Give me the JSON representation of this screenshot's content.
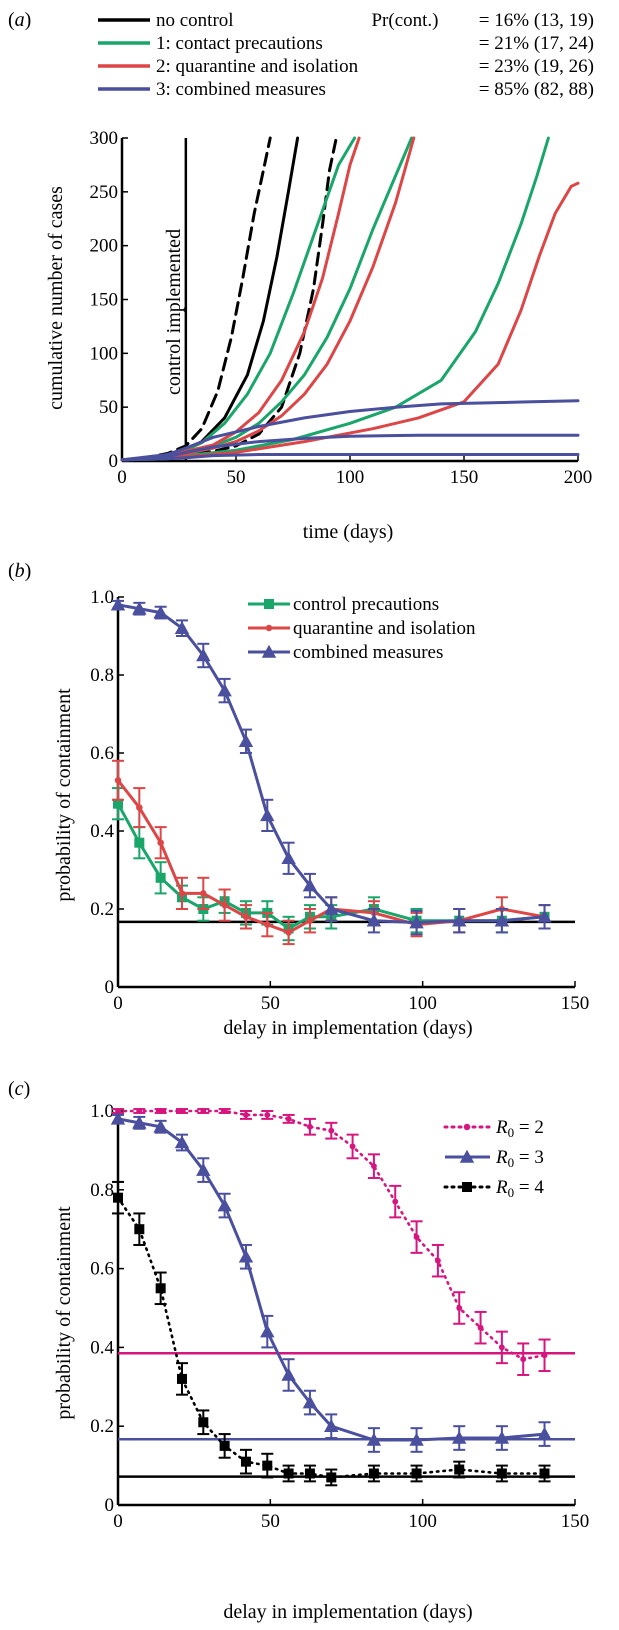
{
  "colors": {
    "black": "#000000",
    "green": "#1aa66a",
    "red": "#dd4646",
    "blue": "#4a4f9e",
    "magenta": "#d6157f"
  },
  "chart_data": [
    {
      "panel": "(a)",
      "type": "line",
      "xlabel": "time (days)",
      "ylabel": "cumulative number of cases",
      "xlim": [
        0,
        200
      ],
      "ylim": [
        0,
        300
      ],
      "xticks": [
        "0",
        "50",
        "100",
        "150",
        "200"
      ],
      "yticks": [
        "0",
        "50",
        "100",
        "150",
        "200",
        "250",
        "300"
      ],
      "annotation": "control implemented",
      "control_day": 28,
      "legend_header": "Pr(cont.)",
      "legend": [
        {
          "name": "no control",
          "pr": "= 16% (13, 19)"
        },
        {
          "name": "1: contact precautions",
          "pr": "= 21% (17, 24)"
        },
        {
          "name": "2: quarantine and isolation",
          "pr": "= 23% (19, 26)"
        },
        {
          "name": "3: combined measures",
          "pr": "= 85% (82, 88)"
        }
      ],
      "series": [
        {
          "legend": 0,
          "style": "solid",
          "points": [
            [
              0,
              1
            ],
            [
              10,
              2
            ],
            [
              20,
              5
            ],
            [
              28,
              10
            ],
            [
              35,
              18
            ],
            [
              45,
              40
            ],
            [
              55,
              80
            ],
            [
              62,
              130
            ],
            [
              68,
              190
            ],
            [
              73,
              250
            ],
            [
              77,
              300
            ]
          ]
        },
        {
          "legend": 0,
          "style": "dashed",
          "points": [
            [
              0,
              1
            ],
            [
              10,
              3
            ],
            [
              20,
              7
            ],
            [
              28,
              14
            ],
            [
              35,
              30
            ],
            [
              42,
              65
            ],
            [
              48,
              115
            ],
            [
              53,
              170
            ],
            [
              58,
              230
            ],
            [
              62,
              270
            ],
            [
              65,
              300
            ]
          ]
        },
        {
          "legend": 0,
          "style": "dashed",
          "points": [
            [
              0,
              1
            ],
            [
              20,
              3
            ],
            [
              28,
              6
            ],
            [
              40,
              9
            ],
            [
              50,
              14
            ],
            [
              60,
              25
            ],
            [
              70,
              50
            ],
            [
              78,
              100
            ],
            [
              84,
              160
            ],
            [
              88,
              220
            ],
            [
              91,
              270
            ],
            [
              94,
              300
            ]
          ]
        },
        {
          "legend": 1,
          "style": "solid",
          "points": [
            [
              0,
              1
            ],
            [
              20,
              4
            ],
            [
              28,
              10
            ],
            [
              35,
              17
            ],
            [
              45,
              35
            ],
            [
              55,
              62
            ],
            [
              65,
              100
            ],
            [
              75,
              155
            ],
            [
              85,
              215
            ],
            [
              95,
              275
            ],
            [
              102,
              300
            ]
          ]
        },
        {
          "legend": 1,
          "style": "solid",
          "points": [
            [
              0,
              1
            ],
            [
              20,
              3
            ],
            [
              28,
              8
            ],
            [
              40,
              14
            ],
            [
              50,
              22
            ],
            [
              60,
              35
            ],
            [
              70,
              55
            ],
            [
              80,
              80
            ],
            [
              90,
              115
            ],
            [
              100,
              160
            ],
            [
              110,
              215
            ],
            [
              120,
              265
            ],
            [
              127,
              300
            ]
          ]
        },
        {
          "legend": 1,
          "style": "solid",
          "points": [
            [
              0,
              1
            ],
            [
              20,
              2
            ],
            [
              28,
              5
            ],
            [
              50,
              10
            ],
            [
              75,
              20
            ],
            [
              100,
              35
            ],
            [
              120,
              50
            ],
            [
              140,
              75
            ],
            [
              155,
              120
            ],
            [
              165,
              165
            ],
            [
              175,
              220
            ],
            [
              182,
              265
            ],
            [
              187,
              300
            ]
          ]
        },
        {
          "legend": 2,
          "style": "solid",
          "points": [
            [
              0,
              1
            ],
            [
              20,
              4
            ],
            [
              28,
              9
            ],
            [
              40,
              15
            ],
            [
              50,
              27
            ],
            [
              60,
              45
            ],
            [
              70,
              75
            ],
            [
              80,
              120
            ],
            [
              88,
              170
            ],
            [
              95,
              230
            ],
            [
              100,
              275
            ],
            [
              104,
              300
            ]
          ]
        },
        {
          "legend": 2,
          "style": "solid",
          "points": [
            [
              0,
              1
            ],
            [
              20,
              3
            ],
            [
              28,
              7
            ],
            [
              40,
              12
            ],
            [
              50,
              18
            ],
            [
              60,
              28
            ],
            [
              70,
              42
            ],
            [
              80,
              62
            ],
            [
              90,
              90
            ],
            [
              100,
              130
            ],
            [
              110,
              180
            ],
            [
              120,
              240
            ],
            [
              128,
              300
            ]
          ]
        },
        {
          "legend": 2,
          "style": "solid",
          "points": [
            [
              0,
              1
            ],
            [
              28,
              4
            ],
            [
              50,
              8
            ],
            [
              80,
              18
            ],
            [
              110,
              30
            ],
            [
              130,
              40
            ],
            [
              150,
              55
            ],
            [
              165,
              90
            ],
            [
              175,
              140
            ],
            [
              183,
              190
            ],
            [
              190,
              230
            ],
            [
              197,
              255
            ],
            [
              200,
              258
            ]
          ]
        },
        {
          "legend": 3,
          "style": "solid",
          "points": [
            [
              0,
              1
            ],
            [
              20,
              6
            ],
            [
              28,
              12
            ],
            [
              40,
              22
            ],
            [
              60,
              32
            ],
            [
              80,
              40
            ],
            [
              100,
              46
            ],
            [
              120,
              50
            ],
            [
              140,
              53
            ],
            [
              160,
              54
            ],
            [
              180,
              55
            ],
            [
              200,
              56
            ]
          ]
        },
        {
          "legend": 3,
          "style": "solid",
          "points": [
            [
              0,
              1
            ],
            [
              20,
              4
            ],
            [
              28,
              8
            ],
            [
              40,
              13
            ],
            [
              60,
              18
            ],
            [
              80,
              21
            ],
            [
              100,
              23
            ],
            [
              130,
              24
            ],
            [
              160,
              24
            ],
            [
              200,
              24
            ]
          ]
        },
        {
          "legend": 3,
          "style": "solid",
          "points": [
            [
              0,
              1
            ],
            [
              20,
              2
            ],
            [
              28,
              3
            ],
            [
              40,
              5
            ],
            [
              60,
              6
            ],
            [
              80,
              6
            ],
            [
              120,
              6
            ],
            [
              200,
              6
            ]
          ]
        }
      ]
    },
    {
      "panel": "(b)",
      "type": "line",
      "xlabel": "delay in implementation (days)",
      "ylabel": "probability of containment",
      "xlim": [
        0,
        150
      ],
      "ylim": [
        0,
        1.0
      ],
      "xticks": [
        "0",
        "50",
        "100",
        "150"
      ],
      "yticks": [
        "0",
        "0.2",
        "0.4",
        "0.6",
        "0.8",
        "1.0"
      ],
      "hline": {
        "y": 0.167,
        "color": "black"
      },
      "legend": [
        {
          "name": "control precautions",
          "color": "green",
          "marker": "square"
        },
        {
          "name": "quarantine and isolation",
          "color": "red",
          "marker": "dot"
        },
        {
          "name": "combined measures",
          "color": "blue",
          "marker": "triangle"
        }
      ],
      "series": [
        {
          "legend": 0,
          "x": [
            0,
            7,
            14,
            21,
            28,
            35,
            42,
            49,
            56,
            63,
            70,
            84,
            98,
            112,
            126,
            140
          ],
          "y": [
            0.47,
            0.37,
            0.28,
            0.23,
            0.2,
            0.22,
            0.19,
            0.19,
            0.15,
            0.18,
            0.18,
            0.2,
            0.17,
            0.17,
            0.17,
            0.18
          ],
          "err": [
            0.04,
            0.04,
            0.04,
            0.03,
            0.03,
            0.03,
            0.03,
            0.03,
            0.03,
            0.03,
            0.03,
            0.03,
            0.03,
            0.03,
            0.03,
            0.03
          ]
        },
        {
          "legend": 1,
          "x": [
            0,
            7,
            14,
            21,
            28,
            35,
            42,
            49,
            56,
            63,
            70,
            84,
            98,
            112,
            126,
            140
          ],
          "y": [
            0.53,
            0.46,
            0.37,
            0.24,
            0.24,
            0.21,
            0.18,
            0.16,
            0.14,
            0.17,
            0.2,
            0.19,
            0.16,
            0.17,
            0.2,
            0.18
          ],
          "err": [
            0.05,
            0.05,
            0.04,
            0.04,
            0.04,
            0.04,
            0.03,
            0.03,
            0.03,
            0.03,
            0.03,
            0.03,
            0.03,
            0.03,
            0.03,
            0.03
          ]
        },
        {
          "legend": 2,
          "x": [
            0,
            7,
            14,
            21,
            28,
            35,
            42,
            49,
            56,
            63,
            70,
            84,
            98,
            112,
            126,
            140
          ],
          "y": [
            0.98,
            0.97,
            0.96,
            0.92,
            0.85,
            0.76,
            0.63,
            0.44,
            0.33,
            0.26,
            0.2,
            0.17,
            0.165,
            0.17,
            0.17,
            0.18
          ],
          "err": [
            0.01,
            0.015,
            0.015,
            0.02,
            0.03,
            0.03,
            0.03,
            0.04,
            0.04,
            0.03,
            0.03,
            0.03,
            0.03,
            0.03,
            0.03,
            0.03
          ]
        }
      ]
    },
    {
      "panel": "(c)",
      "type": "line",
      "xlabel": "delay in implementation (days)",
      "ylabel": "probability of containment",
      "xlim": [
        0,
        150
      ],
      "ylim": [
        0,
        1.0
      ],
      "xticks": [
        "0",
        "50",
        "100",
        "150"
      ],
      "yticks": [
        "0",
        "0.2",
        "0.4",
        "0.6",
        "0.8",
        "1.0"
      ],
      "hlines": [
        {
          "y": 0.385,
          "color": "magenta"
        },
        {
          "y": 0.167,
          "color": "blue"
        },
        {
          "y": 0.072,
          "color": "black"
        }
      ],
      "legend": [
        {
          "name": "R",
          "sub": "0",
          "value": " = 2",
          "color": "magenta",
          "marker": "dot",
          "style": "dotted"
        },
        {
          "name": "R",
          "sub": "0",
          "value": " = 3",
          "color": "blue",
          "marker": "triangle",
          "style": "solid"
        },
        {
          "name": "R",
          "sub": "0",
          "value": " = 4",
          "color": "black",
          "marker": "square",
          "style": "dotted"
        }
      ],
      "series": [
        {
          "legend": 0,
          "x": [
            0,
            7,
            14,
            21,
            28,
            35,
            42,
            49,
            56,
            63,
            70,
            77,
            84,
            91,
            98,
            105,
            112,
            119,
            126,
            133,
            140
          ],
          "y": [
            1.0,
            1.0,
            1.0,
            1.0,
            1.0,
            1.0,
            0.99,
            0.99,
            0.98,
            0.96,
            0.95,
            0.91,
            0.86,
            0.77,
            0.68,
            0.62,
            0.5,
            0.45,
            0.4,
            0.37,
            0.38
          ],
          "err": [
            0.005,
            0.005,
            0.005,
            0.005,
            0.005,
            0.005,
            0.01,
            0.01,
            0.01,
            0.02,
            0.02,
            0.03,
            0.03,
            0.04,
            0.04,
            0.04,
            0.04,
            0.04,
            0.04,
            0.04,
            0.04
          ]
        },
        {
          "legend": 1,
          "x": [
            0,
            7,
            14,
            21,
            28,
            35,
            42,
            49,
            56,
            63,
            70,
            84,
            98,
            112,
            126,
            140
          ],
          "y": [
            0.98,
            0.97,
            0.96,
            0.92,
            0.85,
            0.76,
            0.63,
            0.44,
            0.33,
            0.26,
            0.2,
            0.165,
            0.165,
            0.17,
            0.17,
            0.18
          ],
          "err": [
            0.01,
            0.015,
            0.015,
            0.02,
            0.03,
            0.03,
            0.03,
            0.04,
            0.04,
            0.03,
            0.03,
            0.03,
            0.03,
            0.03,
            0.03,
            0.03
          ]
        },
        {
          "legend": 2,
          "x": [
            0,
            7,
            14,
            21,
            28,
            35,
            42,
            49,
            56,
            63,
            70,
            84,
            98,
            112,
            126,
            140
          ],
          "y": [
            0.78,
            0.7,
            0.55,
            0.32,
            0.21,
            0.15,
            0.11,
            0.1,
            0.08,
            0.08,
            0.07,
            0.08,
            0.08,
            0.09,
            0.08,
            0.08
          ],
          "err": [
            0.04,
            0.04,
            0.04,
            0.04,
            0.03,
            0.03,
            0.03,
            0.03,
            0.02,
            0.02,
            0.02,
            0.02,
            0.02,
            0.02,
            0.02,
            0.02
          ]
        }
      ]
    }
  ]
}
